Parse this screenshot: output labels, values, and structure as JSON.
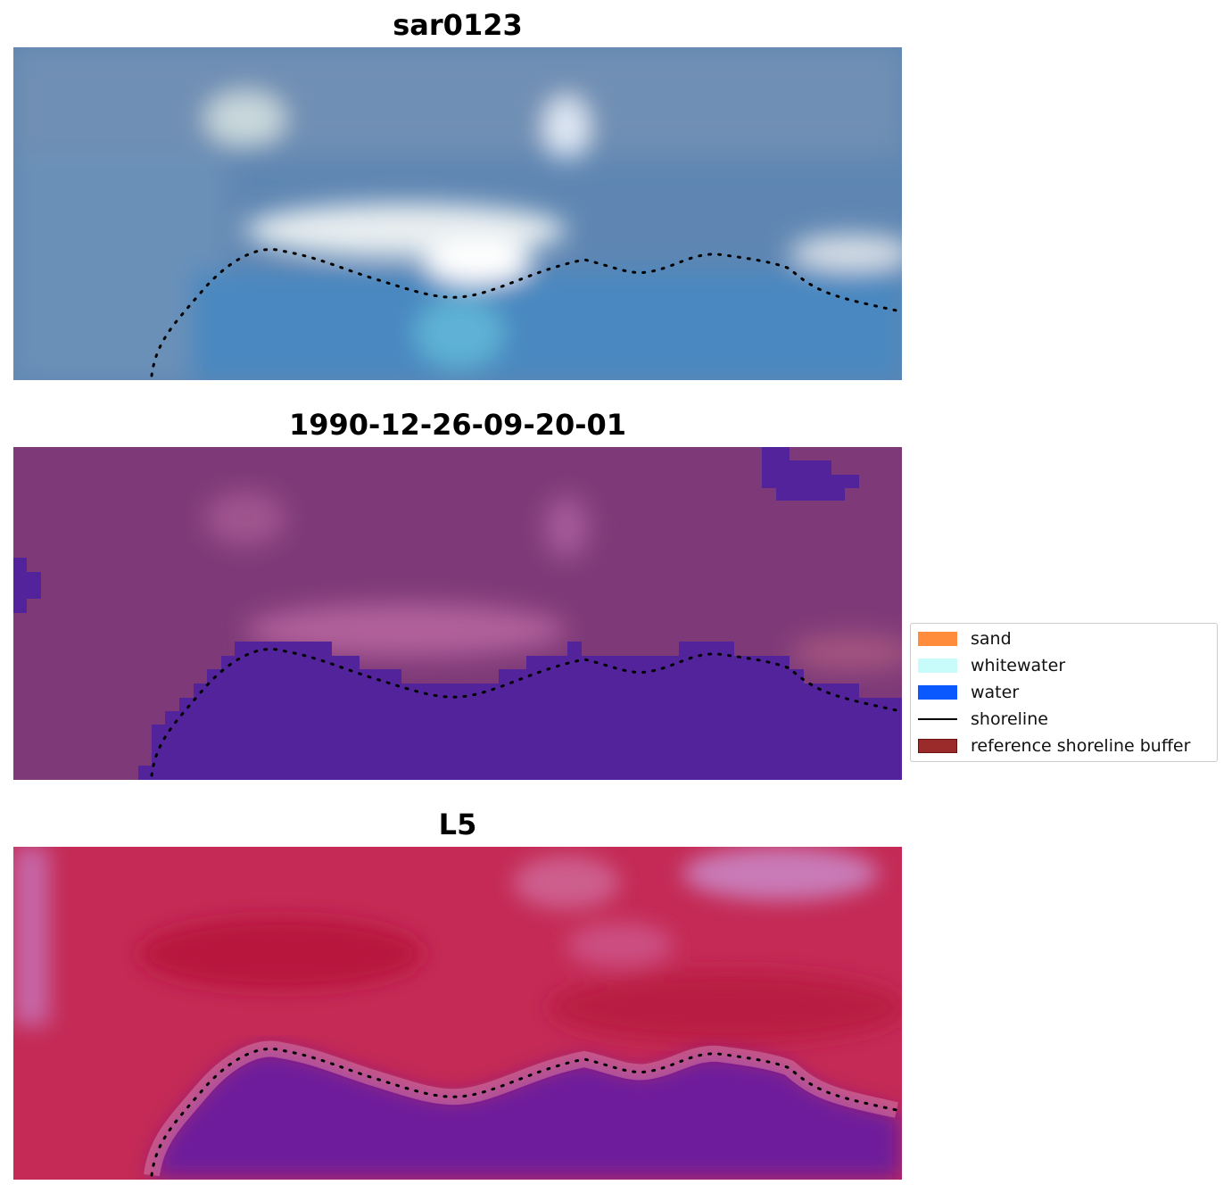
{
  "panels": [
    {
      "title": "sar0123"
    },
    {
      "title": "1990-12-26-09-20-01"
    },
    {
      "title": "L5"
    }
  ],
  "legend": {
    "items": [
      {
        "label": "sand",
        "kind": "patch",
        "color": "#ff8c3c"
      },
      {
        "label": "whitewater",
        "kind": "patch",
        "color": "#c8fcfa"
      },
      {
        "label": "water",
        "kind": "patch",
        "color": "#0a59ff"
      },
      {
        "label": "shoreline",
        "kind": "line",
        "color": "#000000"
      },
      {
        "label": "reference shoreline buffer",
        "kind": "patch",
        "color": "#9b2a2a"
      }
    ]
  },
  "colors": {
    "panel1_base": "#5b87b3",
    "panel2_base": "#7e3a78",
    "panel2_water_mask": "#52239a",
    "panel3_base": "#c1244f",
    "panel3_water": "#6a1a9c",
    "shoreline": "#000000"
  }
}
